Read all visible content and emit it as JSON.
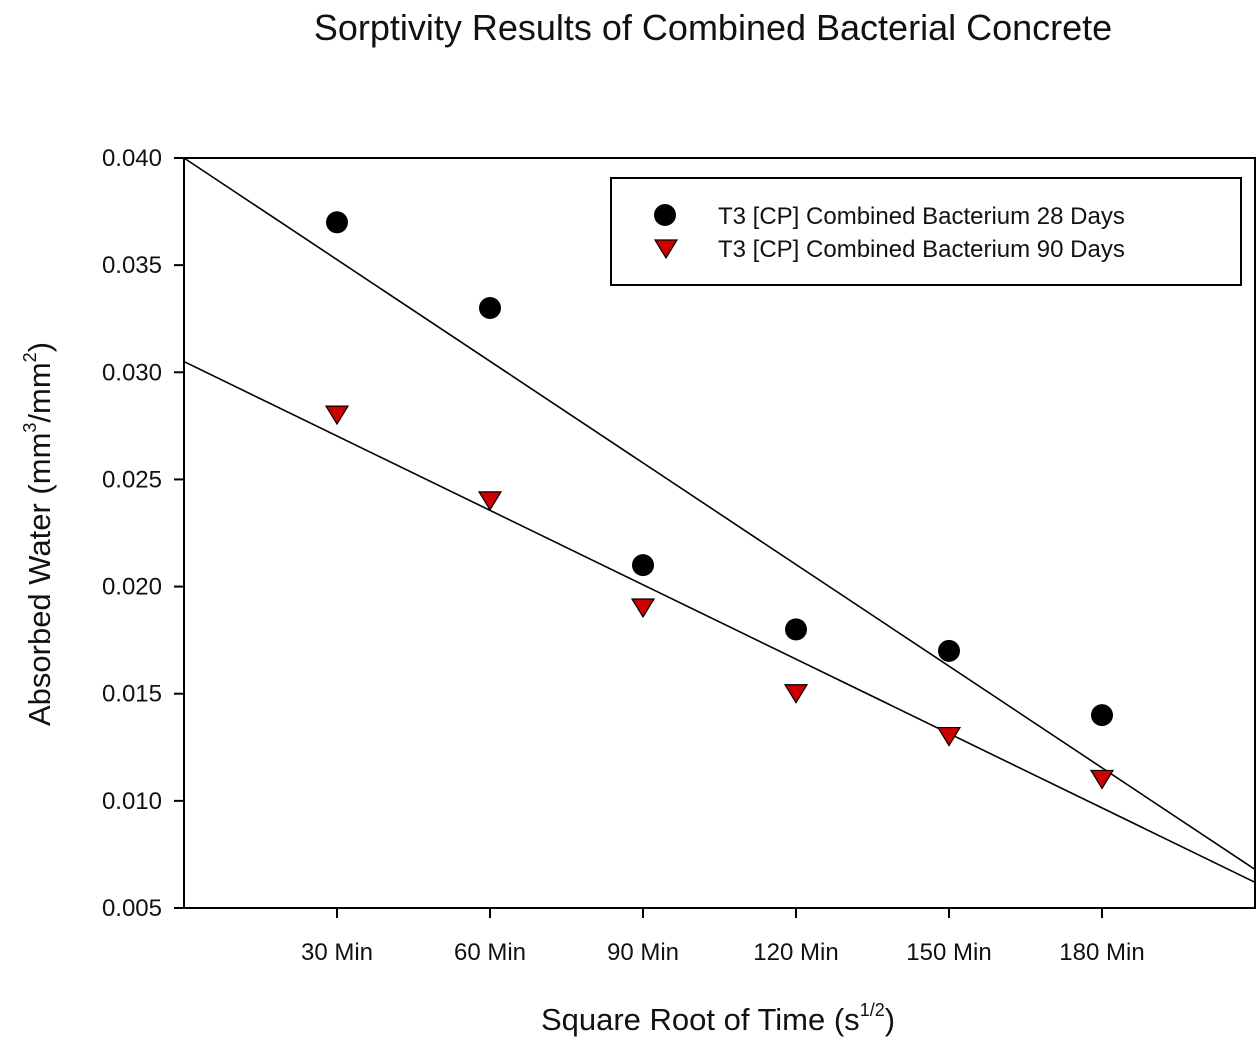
{
  "chart_data": {
    "type": "scatter",
    "title": "Sorptivity Results of Combined Bacterial Concrete",
    "xlabel": {
      "main": "Square Root of Time (s",
      "sup": "1/2",
      "close": ")"
    },
    "ylabel": {
      "main": "Absorbed Water (mm",
      "sup1": "3",
      "mid": "/mm",
      "sup2": "2",
      "close": ")"
    },
    "categories": [
      "30 Min",
      "60 Min",
      "90 Min",
      "120 Min",
      "150 Min",
      "180 Min"
    ],
    "ylim": [
      0.005,
      0.04
    ],
    "yticks": [
      "0.005",
      "0.010",
      "0.015",
      "0.020",
      "0.025",
      "0.030",
      "0.035",
      "0.040"
    ],
    "legend_position": "top-right",
    "series": [
      {
        "name": "T3 [CP] Combined Bacterium 28 Days",
        "marker": "circle",
        "color": "#000000",
        "values": [
          0.037,
          0.033,
          0.021,
          0.018,
          0.017,
          0.014
        ],
        "trend": [
          0.04,
          0.0068
        ]
      },
      {
        "name": "T3 [CP] Combined Bacterium 90 Days",
        "marker": "triangle-down",
        "color": "#cc0000",
        "values": [
          0.028,
          0.024,
          0.019,
          0.015,
          0.013,
          0.011
        ],
        "trend": [
          0.0305,
          0.0062
        ]
      }
    ]
  }
}
